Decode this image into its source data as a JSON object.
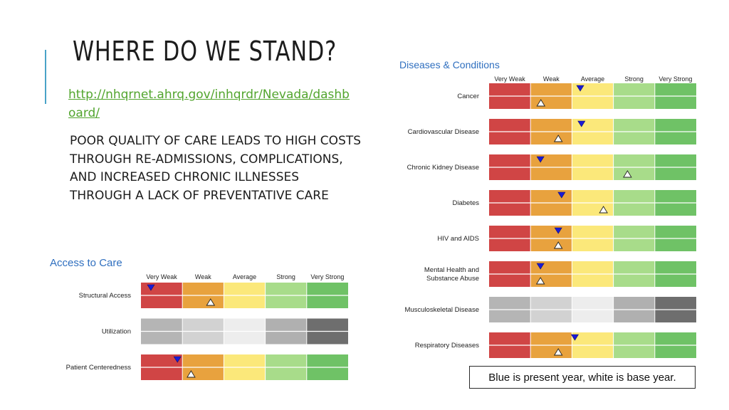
{
  "slide": {
    "title": "WHERE DO WE STAND?",
    "link": "http://nhqrnet.ahrq.gov/inhqrdr/Nevada/dashboard/",
    "body": "Poor quality of care leads to high costs through re-admissions, complications, and increased chronic illnesses through a lack of preventative care",
    "note": "Blue is present year, white is base year."
  },
  "colors": {
    "accent": "#4aa3c8",
    "link": "#52a52e",
    "panel_title": "#2f6fbf",
    "present_marker": "#1a1ad6",
    "base_marker": "#ffffff",
    "levels": [
      "#d04545",
      "#e8a23e",
      "#fbe87a",
      "#a8dc8a",
      "#6fc266"
    ],
    "levels_no_data": [
      "#b5b5b5",
      "#d2d2d2",
      "#ededed",
      "#b0b0b0",
      "#6e6e6e"
    ]
  },
  "chart_data": [
    {
      "type": "table",
      "title": "Access to Care",
      "levels": [
        "Very Weak",
        "Weak",
        "Average",
        "Strong",
        "Very Strong"
      ],
      "categories": [
        {
          "label": "Structural Access",
          "present": 0.24,
          "base": 1.68,
          "has_data": true
        },
        {
          "label": "Utilization",
          "present": null,
          "base": null,
          "has_data": false
        },
        {
          "label": "Patient Centeredness",
          "present": 0.88,
          "base": 1.21,
          "has_data": true
        }
      ]
    },
    {
      "type": "table",
      "title": "Diseases & Conditions",
      "levels": [
        "Very Weak",
        "Weak",
        "Average",
        "Strong",
        "Very Strong"
      ],
      "categories": [
        {
          "label": "Cancer",
          "present": 2.2,
          "base": 1.25,
          "has_data": true
        },
        {
          "label": "Cardiovascular Disease",
          "present": 2.23,
          "base": 1.67,
          "has_data": true
        },
        {
          "label": "Chronic Kidney Disease",
          "present": 1.24,
          "base": 3.34,
          "has_data": true
        },
        {
          "label": "Diabetes",
          "present": 1.75,
          "base": 2.76,
          "has_data": true
        },
        {
          "label": "HIV and AIDS",
          "present": 1.67,
          "base": 1.67,
          "has_data": true
        },
        {
          "label": "Mental Health and|Substance Abuse",
          "present": 1.24,
          "base": 1.24,
          "has_data": true
        },
        {
          "label": "Musculoskeletal Disease",
          "present": null,
          "base": null,
          "has_data": false
        },
        {
          "label": "Respiratory Diseases",
          "present": 2.07,
          "base": 1.67,
          "has_data": true
        }
      ]
    }
  ]
}
